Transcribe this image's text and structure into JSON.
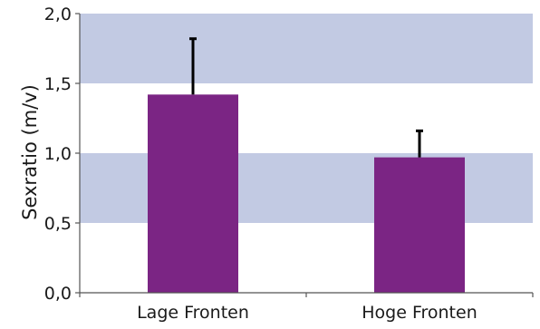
{
  "chart_data": {
    "type": "bar",
    "title": "",
    "xlabel": "",
    "ylabel": "Sexratio (m/v)",
    "categories": [
      "Lage Fronten",
      "Hoge Fronten"
    ],
    "values": [
      1.42,
      0.97
    ],
    "error_upper": [
      1.82,
      1.16
    ],
    "ylim": [
      0.0,
      2.0
    ],
    "yticks": [
      0.0,
      0.5,
      1.0,
      1.5,
      2.0
    ],
    "ytick_labels": [
      "0,0",
      "0,5",
      "1,0",
      "1,5",
      "2,0"
    ],
    "bands": [
      [
        0.5,
        1.0
      ],
      [
        1.5,
        2.0
      ]
    ],
    "colors": {
      "bar": "#7b2584",
      "band": "#c2cae3",
      "axis": "#555555",
      "error": "#000000"
    }
  }
}
